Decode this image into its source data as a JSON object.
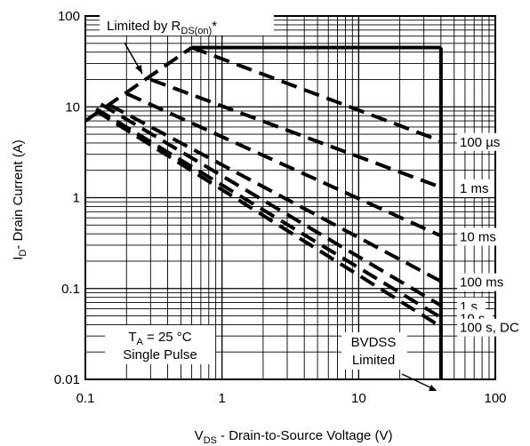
{
  "chart_data": {
    "type": "line",
    "xscale": "log",
    "yscale": "log",
    "xlim": [
      0.1,
      100
    ],
    "ylim": [
      0.01,
      100
    ],
    "grid": true,
    "x_ticks": [
      "0.1",
      "1",
      "10",
      "100"
    ],
    "y_ticks": [
      "0.01",
      "0.1",
      "1",
      "10",
      "100"
    ],
    "xlabel": {
      "main": "V",
      "sub": "DS",
      "rest": " - Drain-to-Source Voltage (V)"
    },
    "ylabel": {
      "main": "I",
      "sub": "D",
      "rest": "- Drain Current (A)"
    },
    "annotations": {
      "rds": {
        "main": "Limited by R",
        "sub": "DS(on)",
        "rest": "*"
      },
      "ta": {
        "main": "T",
        "sub": "A",
        "rest": " = 25 °C"
      },
      "pulse": "Single Pulse",
      "bvdss_1": "BVDSS",
      "bvdss_2": "Limited"
    },
    "rds_limit": [
      [
        0.1,
        7
      ],
      [
        0.6,
        45
      ]
    ],
    "current_limit": [
      [
        0.6,
        45
      ],
      [
        40,
        45
      ]
    ],
    "bvdss_limit": [
      [
        40,
        45
      ],
      [
        40,
        0.01
      ]
    ],
    "series": [
      {
        "name": "100 µs",
        "points": [
          [
            0.6,
            45
          ],
          [
            40,
            4.2
          ]
        ]
      },
      {
        "name": "1 ms",
        "points": [
          [
            0.3,
            20
          ],
          [
            40,
            1.3
          ]
        ]
      },
      {
        "name": "10 ms",
        "points": [
          [
            0.2,
            14
          ],
          [
            40,
            0.38
          ]
        ]
      },
      {
        "name": "100 ms",
        "points": [
          [
            0.15,
            10.5
          ],
          [
            40,
            0.12
          ]
        ]
      },
      {
        "name": "1 s",
        "points": [
          [
            0.13,
            10.7
          ],
          [
            40,
            0.065
          ]
        ]
      },
      {
        "name": "10 s",
        "points": [
          [
            0.12,
            9.5
          ],
          [
            40,
            0.048
          ]
        ]
      },
      {
        "name": "100 s, DC",
        "points": [
          [
            0.12,
            9
          ],
          [
            40,
            0.038
          ]
        ]
      }
    ]
  }
}
